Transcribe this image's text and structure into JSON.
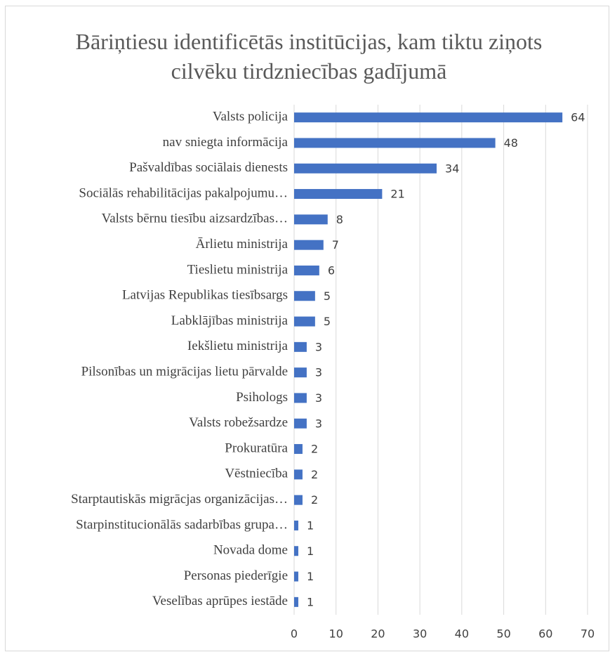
{
  "chart_data": {
    "type": "bar",
    "orientation": "horizontal",
    "title": "Bāriņtiesu identificētās institūcijas, kam tiktu ziņots cilvēku tirdzniecības gadījumā",
    "categories": [
      "Valsts policija",
      "nav sniegta informācija",
      "Pašvaldības sociālais dienests",
      "Sociālās rehabilitācijas pakalpojumu…",
      "Valsts bērnu tiesību aizsardzības…",
      "Ārlietu ministrija",
      "Tieslietu ministrija",
      "Latvijas Republikas tiesībsargs",
      "Labklājības ministrija",
      "Iekšlietu ministrija",
      "Pilsonības un migrācijas lietu pārvalde",
      "Psihologs",
      "Valsts robežsardze",
      "Prokuratūra",
      "Vēstniecība",
      "Starptautiskās migrācjas organizācijas…",
      "Starpinstitucionālās sadarbības grupa…",
      "Novada dome",
      "Personas piederīgie",
      "Veselības aprūpes iestāde"
    ],
    "values": [
      64,
      48,
      34,
      21,
      8,
      7,
      6,
      5,
      5,
      3,
      3,
      3,
      3,
      2,
      2,
      2,
      1,
      1,
      1,
      1
    ],
    "color": "#4472c4",
    "xlim": [
      0,
      70
    ],
    "xticks": [
      0,
      10,
      20,
      30,
      40,
      50,
      60,
      70
    ],
    "grid": true
  }
}
